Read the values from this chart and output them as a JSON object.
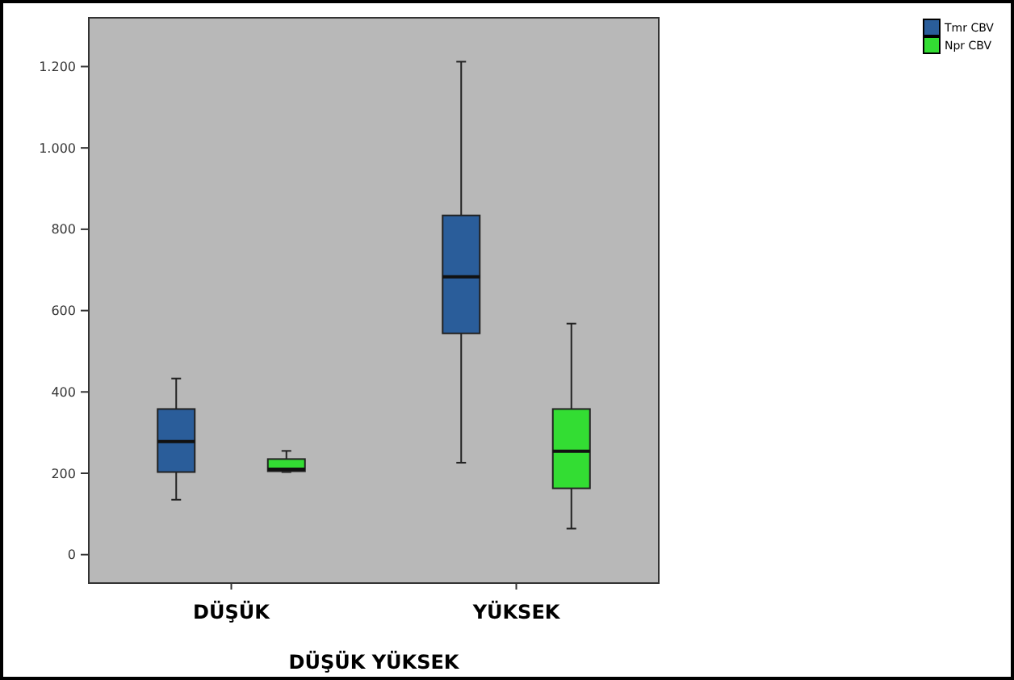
{
  "chart_data": {
    "type": "box",
    "xlabel": "DÜŞÜK YÜKSEK",
    "categories": [
      "DÜŞÜK",
      "YÜKSEK"
    ],
    "ylim": [
      -70,
      1320
    ],
    "yticks": [
      0,
      200,
      400,
      600,
      800,
      {
        "value": 1000,
        "label": "1.000"
      },
      {
        "value": 1200,
        "label": "1.200"
      }
    ],
    "legend": "top right",
    "grid": false,
    "series": [
      {
        "name": "Tmr CBV",
        "color": "#2a5d9a",
        "boxes": [
          {
            "low": 135,
            "q1": 203,
            "median": 278,
            "q3": 358,
            "high": 433
          },
          {
            "low": 226,
            "q1": 544,
            "median": 683,
            "q3": 834,
            "high": 1212
          }
        ]
      },
      {
        "name": "Npr CBV",
        "color": "#33dd33",
        "boxes": [
          {
            "low": 203,
            "q1": 205,
            "median": 210,
            "q3": 235,
            "high": 255
          },
          {
            "low": 64,
            "q1": 163,
            "median": 254,
            "q3": 358,
            "high": 568
          }
        ]
      }
    ]
  }
}
